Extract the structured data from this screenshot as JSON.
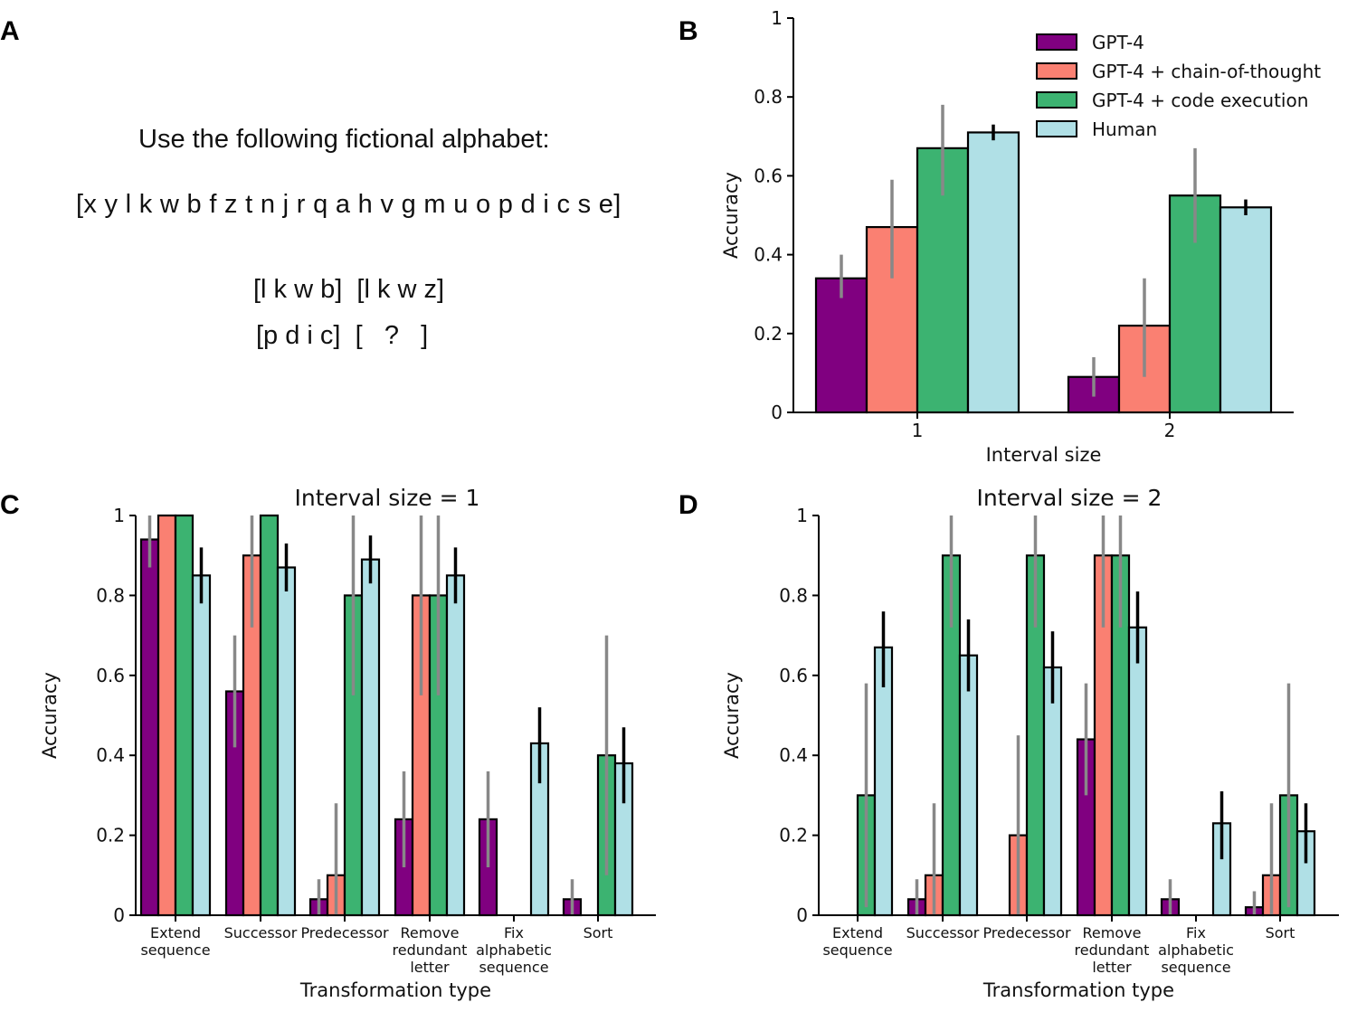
{
  "panel_labels": [
    "A",
    "B",
    "C",
    "D"
  ],
  "panel_a": {
    "instruction": "Use the following fictional alphabet:",
    "alphabet": "[x y l k w b f z t n j r q a h v g m u o p d i c s e]",
    "example_line_1": "[l k w b]  [l k w z]",
    "example_line_2": "[p d i c]  [   ?   ]"
  },
  "colors": {
    "GPT-4": "#800080",
    "GPT-4 + chain-of-thought": "#fa8072",
    "GPT-4 + code execution": "#3cb371",
    "Human": "#b0e0e6",
    "model_error": "#888888",
    "human_error": "#000000"
  },
  "chart_data": [
    {
      "panel": "B",
      "type": "bar",
      "title": "",
      "xlabel": "Interval size",
      "ylabel": "Accuracy",
      "ylim": [
        0,
        1
      ],
      "yticks": [
        "0",
        "0.2",
        "0.4",
        "0.6",
        "0.8",
        "1"
      ],
      "categories": [
        "1",
        "2"
      ],
      "legend": "top-right",
      "series": [
        {
          "name": "GPT-4",
          "values": [
            0.34,
            0.09
          ],
          "ci": [
            [
              0.29,
              0.4
            ],
            [
              0.04,
              0.14
            ]
          ]
        },
        {
          "name": "GPT-4 + chain-of-thought",
          "values": [
            0.47,
            0.22
          ],
          "ci": [
            [
              0.34,
              0.59
            ],
            [
              0.09,
              0.34
            ]
          ]
        },
        {
          "name": "GPT-4 + code execution",
          "values": [
            0.67,
            0.55
          ],
          "ci": [
            [
              0.55,
              0.78
            ],
            [
              0.43,
              0.67
            ]
          ]
        },
        {
          "name": "Human",
          "values": [
            0.71,
            0.52
          ],
          "ci": [
            [
              0.69,
              0.73
            ],
            [
              0.5,
              0.54
            ]
          ]
        }
      ]
    },
    {
      "panel": "C",
      "type": "bar",
      "title": "Interval size = 1",
      "xlabel": "Transformation type",
      "ylabel": "Accuracy",
      "ylim": [
        0,
        1
      ],
      "yticks": [
        "0",
        "0.2",
        "0.4",
        "0.6",
        "0.8",
        "1"
      ],
      "categories": [
        "Extend\nsequence",
        "Successor",
        "Predecessor",
        "Remove\nredundant\nletter",
        "Fix\nalphabetic\nsequence",
        "Sort"
      ],
      "series": [
        {
          "name": "GPT-4",
          "values": [
            0.94,
            0.56,
            0.04,
            0.24,
            0.24,
            0.04
          ],
          "ci": [
            [
              0.87,
              1
            ],
            [
              0.42,
              0.7
            ],
            [
              0,
              0.09
            ],
            [
              0.12,
              0.36
            ],
            [
              0.12,
              0.36
            ],
            [
              0,
              0.09
            ]
          ]
        },
        {
          "name": "GPT-4 + chain-of-thought",
          "values": [
            1.0,
            0.9,
            0.1,
            0.8,
            0,
            0
          ],
          "ci": [
            [
              1,
              1
            ],
            [
              0.72,
              1
            ],
            [
              0,
              0.28
            ],
            [
              0.55,
              1
            ],
            null,
            null
          ]
        },
        {
          "name": "GPT-4 + code execution",
          "values": [
            1.0,
            1.0,
            0.8,
            0.8,
            0,
            0.4
          ],
          "ci": [
            [
              1,
              1
            ],
            [
              1,
              1
            ],
            [
              0.55,
              1
            ],
            [
              0.55,
              1
            ],
            null,
            [
              0.1,
              0.7
            ]
          ]
        },
        {
          "name": "Human",
          "values": [
            0.85,
            0.87,
            0.89,
            0.85,
            0.43,
            0.38
          ],
          "ci": [
            [
              0.78,
              0.92
            ],
            [
              0.81,
              0.93
            ],
            [
              0.83,
              0.95
            ],
            [
              0.78,
              0.92
            ],
            [
              0.33,
              0.52
            ],
            [
              0.28,
              0.47
            ]
          ]
        }
      ]
    },
    {
      "panel": "D",
      "type": "bar",
      "title": "Interval size = 2",
      "xlabel": "Transformation type",
      "ylabel": "Accuracy",
      "ylim": [
        0,
        1
      ],
      "yticks": [
        "0",
        "0.2",
        "0.4",
        "0.6",
        "0.8",
        "1"
      ],
      "categories": [
        "Extend\nsequence",
        "Successor",
        "Predecessor",
        "Remove\nredundant\nletter",
        "Fix\nalphabetic\nsequence",
        "Sort"
      ],
      "series": [
        {
          "name": "GPT-4",
          "values": [
            0,
            0.04,
            0,
            0.44,
            0.04,
            0.02
          ],
          "ci": [
            null,
            [
              0,
              0.09
            ],
            null,
            [
              0.3,
              0.58
            ],
            [
              0,
              0.09
            ],
            [
              0,
              0.06
            ]
          ]
        },
        {
          "name": "GPT-4 + chain-of-thought",
          "values": [
            0,
            0.1,
            0.2,
            0.9,
            0,
            0.1
          ],
          "ci": [
            null,
            [
              0,
              0.28
            ],
            [
              0,
              0.45
            ],
            [
              0.72,
              1
            ],
            null,
            [
              0,
              0.28
            ]
          ]
        },
        {
          "name": "GPT-4 + code execution",
          "values": [
            0.3,
            0.9,
            0.9,
            0.9,
            0,
            0.3
          ],
          "ci": [
            [
              0.02,
              0.58
            ],
            [
              0.72,
              1
            ],
            [
              0.72,
              1
            ],
            [
              0.72,
              1
            ],
            null,
            [
              0.02,
              0.58
            ]
          ]
        },
        {
          "name": "Human",
          "values": [
            0.67,
            0.65,
            0.62,
            0.72,
            0.23,
            0.21
          ],
          "ci": [
            [
              0.57,
              0.76
            ],
            [
              0.56,
              0.74
            ],
            [
              0.53,
              0.71
            ],
            [
              0.63,
              0.81
            ],
            [
              0.14,
              0.31
            ],
            [
              0.13,
              0.28
            ]
          ]
        }
      ]
    }
  ]
}
